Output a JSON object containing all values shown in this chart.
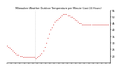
{
  "title": "Milwaukee Weather Outdoor Temperature per Minute (Last 24 Hours)",
  "background_color": "#ffffff",
  "plot_bg_color": "#ffffff",
  "line_color": "#cc0000",
  "vline_color": "#bbbbbb",
  "vline_x": 0.27,
  "ylim": [
    15,
    55
  ],
  "yticks": [
    20,
    25,
    30,
    35,
    40,
    45,
    50,
    55
  ],
  "ytick_labels": [
    "20",
    "25",
    "30",
    "35",
    "40",
    "45",
    "50",
    "55"
  ],
  "num_xticks": 25,
  "x": [
    0.0,
    0.014,
    0.028,
    0.042,
    0.056,
    0.07,
    0.084,
    0.098,
    0.112,
    0.126,
    0.14,
    0.154,
    0.168,
    0.182,
    0.196,
    0.21,
    0.224,
    0.238,
    0.252,
    0.266,
    0.28,
    0.294,
    0.308,
    0.322,
    0.336,
    0.35,
    0.364,
    0.378,
    0.392,
    0.406,
    0.42,
    0.434,
    0.448,
    0.462,
    0.476,
    0.49,
    0.504,
    0.518,
    0.532,
    0.546,
    0.56,
    0.574,
    0.588,
    0.602,
    0.616,
    0.63,
    0.644,
    0.658,
    0.672,
    0.686,
    0.7,
    0.714,
    0.728,
    0.742,
    0.756,
    0.77,
    0.784,
    0.798,
    0.812,
    0.826,
    0.84,
    0.854,
    0.868,
    0.882,
    0.896,
    0.91,
    0.924,
    0.938,
    0.952,
    0.966,
    0.98,
    1.0
  ],
  "y": [
    28,
    27,
    26,
    25,
    24,
    23,
    22,
    21,
    21,
    20,
    20,
    19,
    19,
    19,
    19,
    19,
    19,
    19,
    19,
    19,
    18,
    19,
    20,
    21,
    22,
    24,
    27,
    30,
    34,
    37,
    40,
    42,
    44,
    46,
    47,
    48,
    49,
    50,
    51,
    52,
    52,
    52,
    51,
    51,
    50,
    50,
    49,
    48,
    47,
    46,
    45,
    45,
    44,
    44,
    44,
    44,
    44,
    44,
    44,
    44,
    44,
    44,
    44,
    44,
    44,
    44,
    44,
    44,
    44,
    44,
    44,
    44
  ]
}
